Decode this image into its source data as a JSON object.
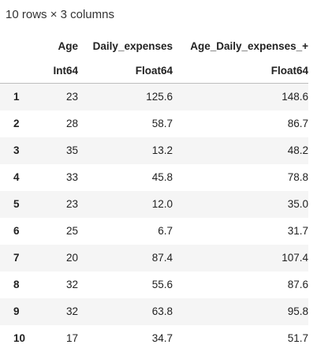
{
  "caption": "10 rows × 3 columns",
  "columns": [
    {
      "name": "Age",
      "type": "Int64"
    },
    {
      "name": "Daily_expenses",
      "type": "Float64"
    },
    {
      "name": "Age_Daily_expenses_+",
      "type": "Float64"
    }
  ],
  "rows": [
    {
      "index": "1",
      "age": "23",
      "daily_expenses": "125.6",
      "sum": "148.6"
    },
    {
      "index": "2",
      "age": "28",
      "daily_expenses": "58.7",
      "sum": "86.7"
    },
    {
      "index": "3",
      "age": "35",
      "daily_expenses": "13.2",
      "sum": "48.2"
    },
    {
      "index": "4",
      "age": "33",
      "daily_expenses": "45.8",
      "sum": "78.8"
    },
    {
      "index": "5",
      "age": "23",
      "daily_expenses": "12.0",
      "sum": "35.0"
    },
    {
      "index": "6",
      "age": "25",
      "daily_expenses": "6.7",
      "sum": "31.7"
    },
    {
      "index": "7",
      "age": "20",
      "daily_expenses": "87.4",
      "sum": "107.4"
    },
    {
      "index": "8",
      "age": "32",
      "daily_expenses": "55.6",
      "sum": "87.6"
    },
    {
      "index": "9",
      "age": "32",
      "daily_expenses": "63.8",
      "sum": "95.8"
    },
    {
      "index": "10",
      "age": "17",
      "daily_expenses": "34.7",
      "sum": "51.7"
    }
  ]
}
